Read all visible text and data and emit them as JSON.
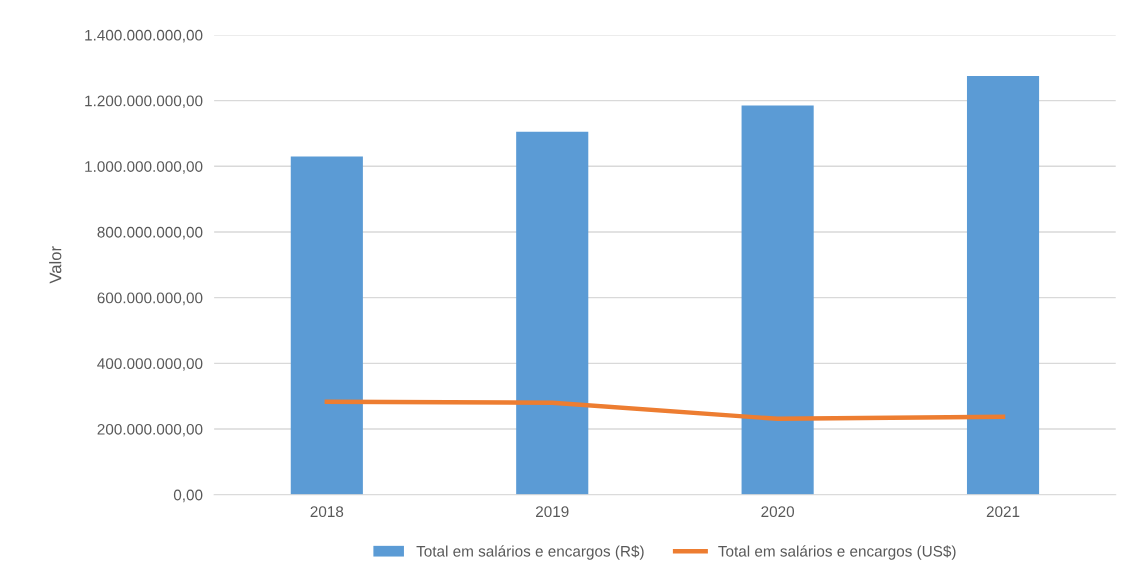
{
  "chart_data": {
    "type": "bar",
    "ylabel": "Valor",
    "categories": [
      "2018",
      "2019",
      "2020",
      "2021"
    ],
    "series": [
      {
        "name": "Total em salários e encargos (R$)",
        "color": "#5b9bd5",
        "values": [
          1030000000,
          1105000000,
          1185000000,
          1275000000
        ]
      },
      {
        "name": "Total em salários e encargos (US$)",
        "type": "line",
        "color": "#ed7d31",
        "values": [
          283000000,
          280000000,
          231000000,
          237000000
        ]
      }
    ],
    "ylim": [
      0,
      1400000000
    ],
    "yticks": [
      {
        "value": 0,
        "label": "0,00"
      },
      {
        "value": 200000000,
        "label": "200.000.000,00"
      },
      {
        "value": 400000000,
        "label": "400.000.000,00"
      },
      {
        "value": 600000000,
        "label": "600.000.000,00"
      },
      {
        "value": 800000000,
        "label": "800.000.000,00"
      },
      {
        "value": 1000000000,
        "label": "1.000.000.000,00"
      },
      {
        "value": 1200000000,
        "label": "1.200.000.000,00"
      },
      {
        "value": 1400000000,
        "label": "1.400.000.000,00"
      }
    ],
    "grid": "y",
    "legend": "bottom",
    "marker": "none",
    "line_style": "solid"
  }
}
